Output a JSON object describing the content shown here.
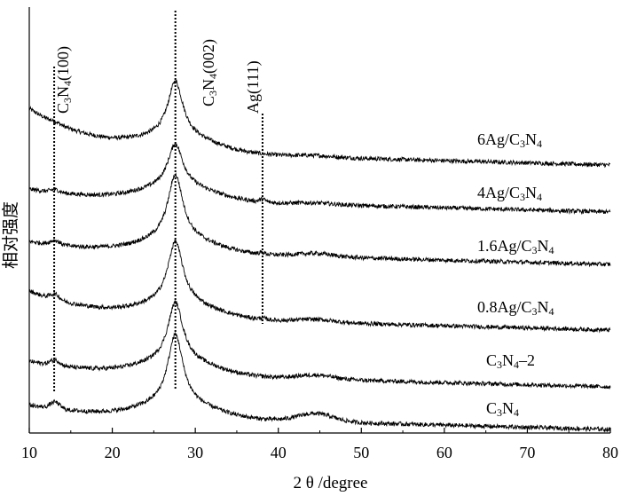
{
  "chart_data": {
    "type": "line",
    "xlabel": "2 θ /degree",
    "ylabel": "相对强度",
    "xlim": [
      10,
      80
    ],
    "xticks": [
      10,
      20,
      30,
      40,
      50,
      60,
      70,
      80
    ],
    "yticks_shown": false,
    "grid": false,
    "legend": "labels placed on the right beside each curve",
    "reference_lines": [
      {
        "label_main": "C",
        "label_sub1": "3",
        "label_mid": "N",
        "label_sub2": "4",
        "label_tail": "(100)",
        "x": 13.0
      },
      {
        "label_main": "C",
        "label_sub1": "3",
        "label_mid": "N",
        "label_sub2": "4",
        "label_tail": "(002)",
        "x": 27.6
      },
      {
        "label_main": "Ag(111)",
        "label_sub1": "",
        "label_mid": "",
        "label_sub2": "",
        "label_tail": "",
        "x": 38.1
      }
    ],
    "series": [
      {
        "name_main": "6Ag/C",
        "name_sub1": "3",
        "name_mid": "N",
        "name_sub2": "4",
        "name_tail": "",
        "offset": 5,
        "start_level": 1.55,
        "end_level": 0.0,
        "peak_height": 2.05,
        "peak_002": 1.0,
        "peak_100": 0.05,
        "hump_45": 0.05,
        "ag_peak": 0.0
      },
      {
        "name_main": "4Ag/C",
        "name_sub1": "3",
        "name_mid": "N",
        "name_sub2": "4",
        "name_tail": "",
        "offset": 4,
        "start_level": 0.3,
        "end_level": 0.0,
        "peak_height": 1.6,
        "peak_002": 1.0,
        "peak_100": 0.1,
        "hump_45": 0.05,
        "ag_peak": 0.1
      },
      {
        "name_main": "1.6Ag/C",
        "name_sub1": "3",
        "name_mid": "N",
        "name_sub2": "4",
        "name_tail": "",
        "offset": 3,
        "start_level": 0.3,
        "end_level": 0.0,
        "peak_height": 2.4,
        "peak_002": 1.0,
        "peak_100": 0.15,
        "hump_45": 0.12,
        "ag_peak": 0.05
      },
      {
        "name_main": "0.8Ag/C",
        "name_sub1": "3",
        "name_mid": "N",
        "name_sub2": "4",
        "name_tail": "",
        "offset": 2,
        "start_level": 0.9,
        "end_level": 0.0,
        "peak_height": 2.3,
        "peak_002": 1.0,
        "peak_100": 0.2,
        "hump_45": 0.1,
        "ag_peak": 0.05
      },
      {
        "name_main": "C",
        "name_sub1": "3",
        "name_mid": "N",
        "name_sub2": "4",
        "name_tail": "–2",
        "offset": 1,
        "start_level": 0.4,
        "end_level": 0.0,
        "peak_height": 2.2,
        "peak_002": 1.0,
        "peak_100": 0.2,
        "hump_45": 0.15,
        "ag_peak": 0.0
      },
      {
        "name_main": "C",
        "name_sub1": "3",
        "name_mid": "N",
        "name_sub2": "4",
        "name_tail": "",
        "offset": 0,
        "start_level": 0.35,
        "end_level": 0.0,
        "peak_height": 2.6,
        "peak_002": 1.0,
        "peak_100": 0.25,
        "hump_45": 0.3,
        "ag_peak": 0.0
      }
    ]
  }
}
